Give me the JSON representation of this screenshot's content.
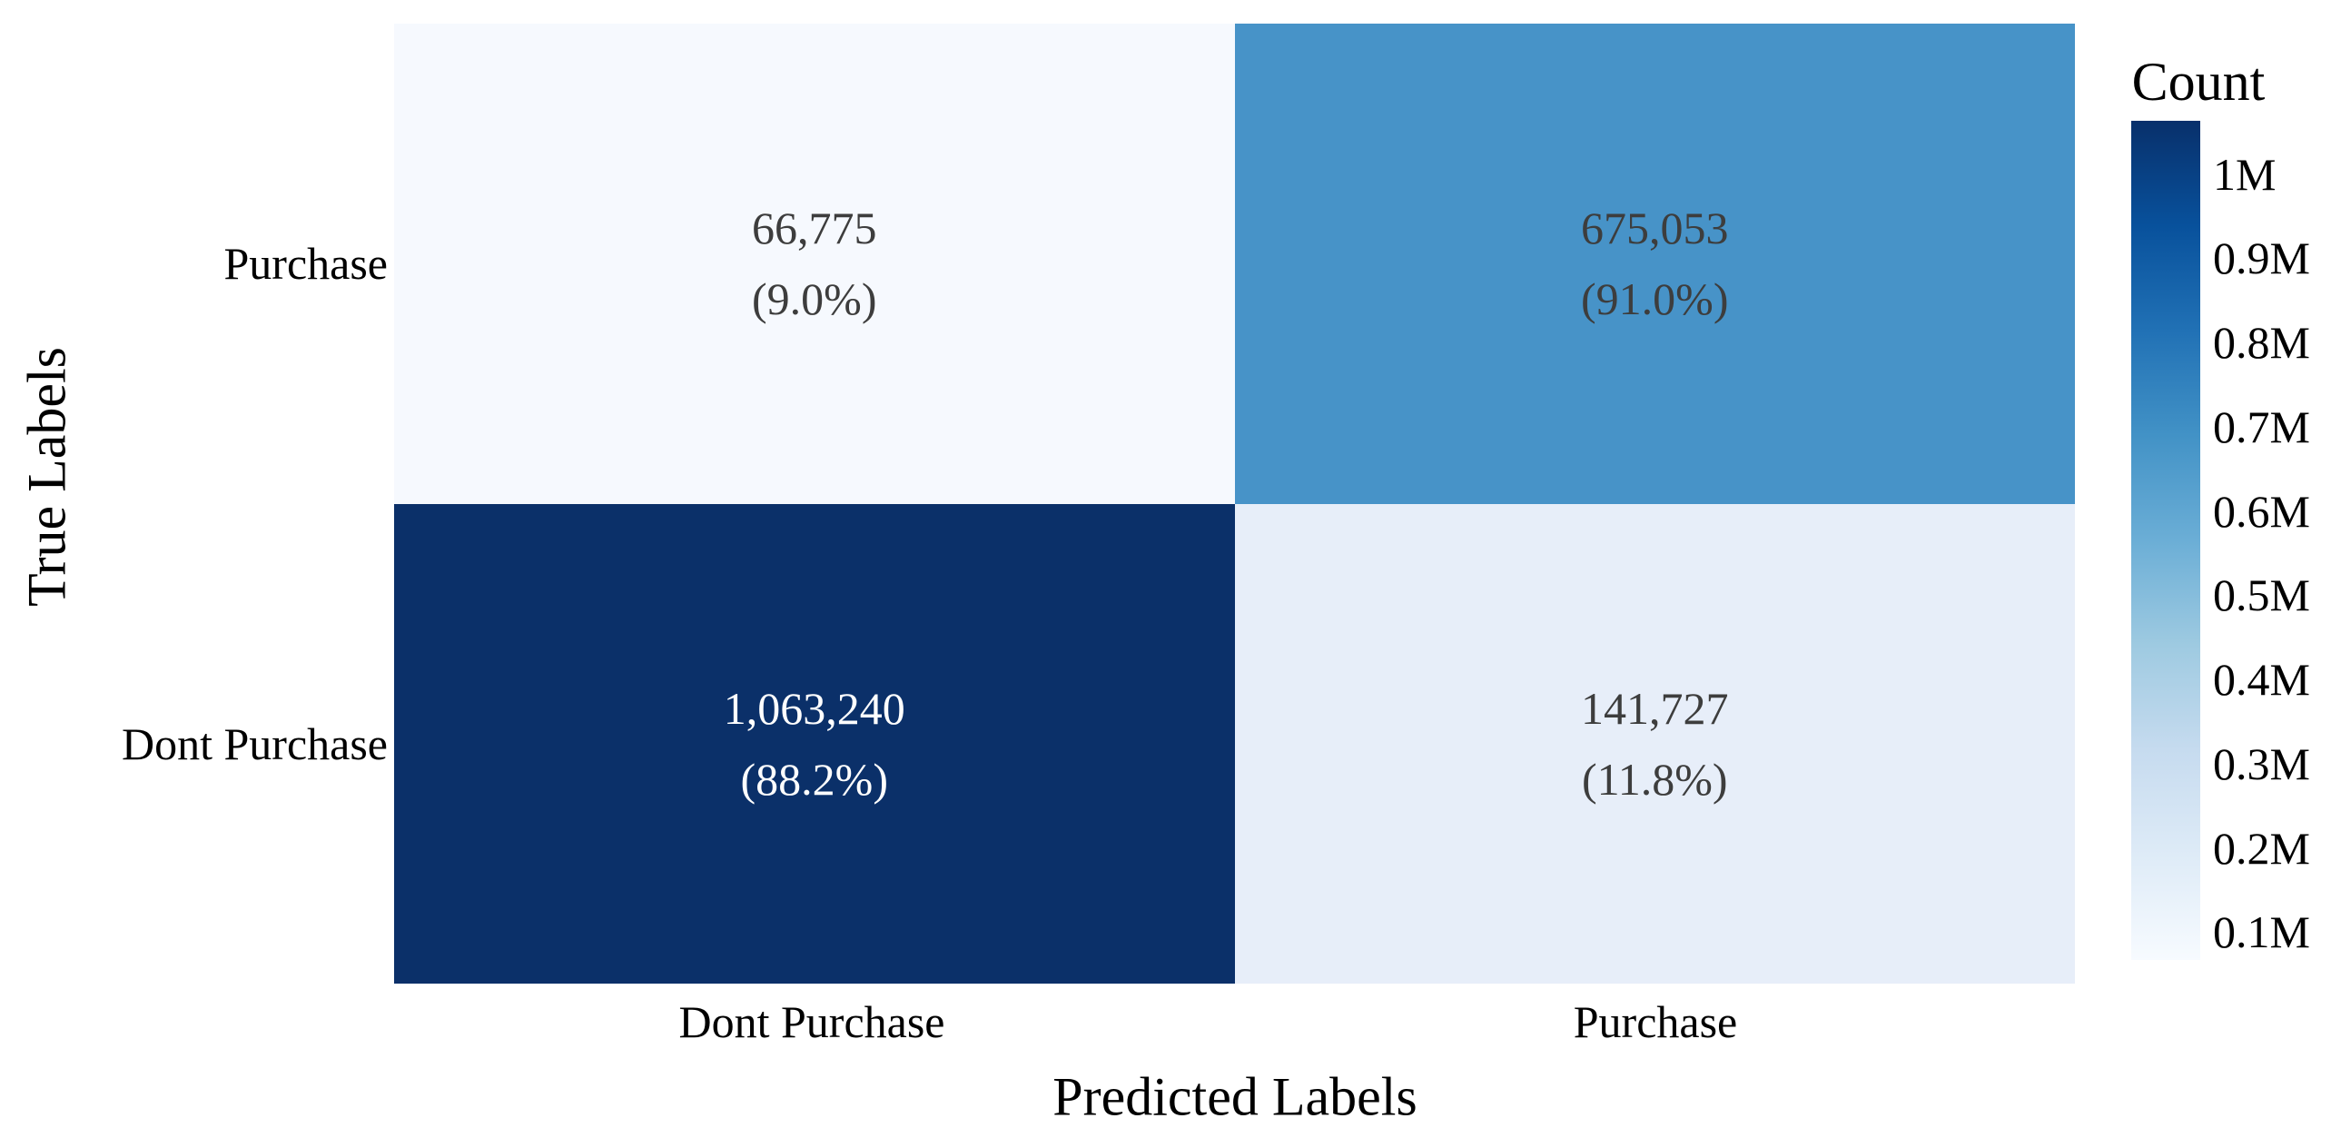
{
  "chart_data": {
    "type": "heatmap",
    "xlabel": "Predicted Labels",
    "ylabel": "True Labels",
    "x_categories": [
      "Dont Purchase",
      "Purchase"
    ],
    "y_categories": [
      "Purchase",
      "Dont Purchase"
    ],
    "cells": [
      {
        "row": "Purchase",
        "col": "Dont Purchase",
        "value": 66775,
        "count_label": "66,775",
        "pct_label": "(9.0%)",
        "bg": "#f6f9fe",
        "text_color": "#3d3d3d"
      },
      {
        "row": "Purchase",
        "col": "Purchase",
        "value": 675053,
        "count_label": "675,053",
        "pct_label": "(91.0%)",
        "bg": "#4793c8",
        "text_color": "#3d3d3d"
      },
      {
        "row": "Dont Purchase",
        "col": "Dont Purchase",
        "value": 1063240,
        "count_label": "1,063,240",
        "pct_label": "(88.2%)",
        "bg": "#0b3069",
        "text_color": "#ffffff"
      },
      {
        "row": "Dont Purchase",
        "col": "Purchase",
        "value": 141727,
        "count_label": "141,727",
        "pct_label": "(11.8%)",
        "bg": "#e7eef9",
        "text_color": "#3d3d3d"
      }
    ],
    "colorbar": {
      "title": "Count",
      "vmin": 66775,
      "vmax": 1063240,
      "colormap": "Blues",
      "gradient_stops_top_to_bottom": [
        "#08306b",
        "#08519c",
        "#2171b5",
        "#4292c6",
        "#6baed6",
        "#9ecae1",
        "#c6dbef",
        "#deebf7",
        "#f7fbff"
      ],
      "ticks": [
        {
          "label": "1M",
          "value": 1000000
        },
        {
          "label": "0.9M",
          "value": 900000
        },
        {
          "label": "0.8M",
          "value": 800000
        },
        {
          "label": "0.7M",
          "value": 700000
        },
        {
          "label": "0.6M",
          "value": 600000
        },
        {
          "label": "0.5M",
          "value": 500000
        },
        {
          "label": "0.4M",
          "value": 400000
        },
        {
          "label": "0.3M",
          "value": 300000
        },
        {
          "label": "0.2M",
          "value": 200000
        },
        {
          "label": "0.1M",
          "value": 100000
        }
      ]
    },
    "layout_hints": {
      "grid": "off",
      "legend_position": "right-colorbar",
      "annotation_format": "count_newline_percent"
    }
  }
}
